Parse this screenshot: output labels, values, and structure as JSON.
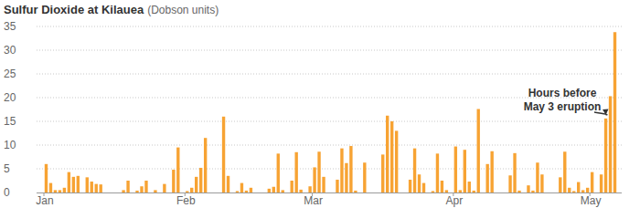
{
  "chart_data": {
    "type": "bar",
    "title": "Sulfur Dioxide at Kilauea",
    "y_label": "(Dobson units)",
    "annotation": {
      "lines": [
        "Hours before",
        "May 3 eruption"
      ]
    },
    "categories": [
      "Jan",
      null,
      null,
      null,
      null,
      null,
      null,
      null,
      null,
      null,
      null,
      null,
      null,
      null,
      null,
      null,
      null,
      null,
      null,
      null,
      null,
      null,
      null,
      null,
      null,
      null,
      null,
      null,
      null,
      null,
      null,
      "Feb",
      null,
      null,
      null,
      null,
      null,
      null,
      null,
      null,
      null,
      null,
      null,
      null,
      null,
      null,
      null,
      null,
      null,
      null,
      null,
      null,
      null,
      null,
      null,
      null,
      null,
      null,
      null,
      "Mar",
      null,
      null,
      null,
      null,
      null,
      null,
      null,
      null,
      null,
      null,
      null,
      null,
      null,
      null,
      null,
      null,
      null,
      null,
      null,
      null,
      null,
      null,
      null,
      null,
      null,
      null,
      null,
      null,
      null,
      null,
      "Apr",
      null,
      null,
      null,
      null,
      null,
      null,
      null,
      null,
      null,
      null,
      null,
      null,
      null,
      null,
      null,
      null,
      null,
      null,
      null,
      null,
      null,
      null,
      null,
      null,
      null,
      null,
      null,
      null,
      null,
      "May",
      null,
      null,
      null,
      null,
      null
    ],
    "values": [
      6,
      2,
      0.5,
      0.5,
      1,
      4.3,
      3.3,
      3.5,
      null,
      3.2,
      2.3,
      1.8,
      1.7,
      null,
      null,
      null,
      null,
      0.5,
      2.5,
      null,
      0.4,
      1.3,
      2.5,
      null,
      0.5,
      null,
      1.8,
      null,
      4.8,
      9.5,
      null,
      0.3,
      1,
      3.3,
      5.2,
      11.5,
      null,
      null,
      null,
      16,
      3.5,
      null,
      0.3,
      2,
      0.4,
      1,
      null,
      null,
      null,
      0.8,
      1.2,
      8.2,
      0.5,
      null,
      2.5,
      8.5,
      0.6,
      null,
      1.3,
      5.3,
      8.6,
      3.3,
      null,
      null,
      2.7,
      9.3,
      6.2,
      9.8,
      0.4,
      null,
      6.3,
      null,
      null,
      null,
      8,
      16.2,
      15,
      13,
      null,
      null,
      2.7,
      9.3,
      3.8,
      2,
      null,
      0.3,
      8.2,
      2.5,
      0.5,
      null,
      9.7,
      0.5,
      9,
      2.3,
      0.4,
      17.6,
      null,
      6,
      8.7,
      null,
      null,
      null,
      3.6,
      8.3,
      0.4,
      null,
      1.5,
      0.4,
      6.3,
      3.8,
      null,
      null,
      null,
      3.2,
      8.6,
      1,
      0.3,
      2.2,
      0.5,
      1,
      4.3,
      null,
      3.8,
      15.6,
      20.3,
      33.8
    ],
    "color": "#f7a333",
    "ylim": [
      0,
      35
    ],
    "yticks": [
      0,
      5,
      10,
      15,
      20,
      25,
      30,
      35
    ],
    "grid": true
  }
}
